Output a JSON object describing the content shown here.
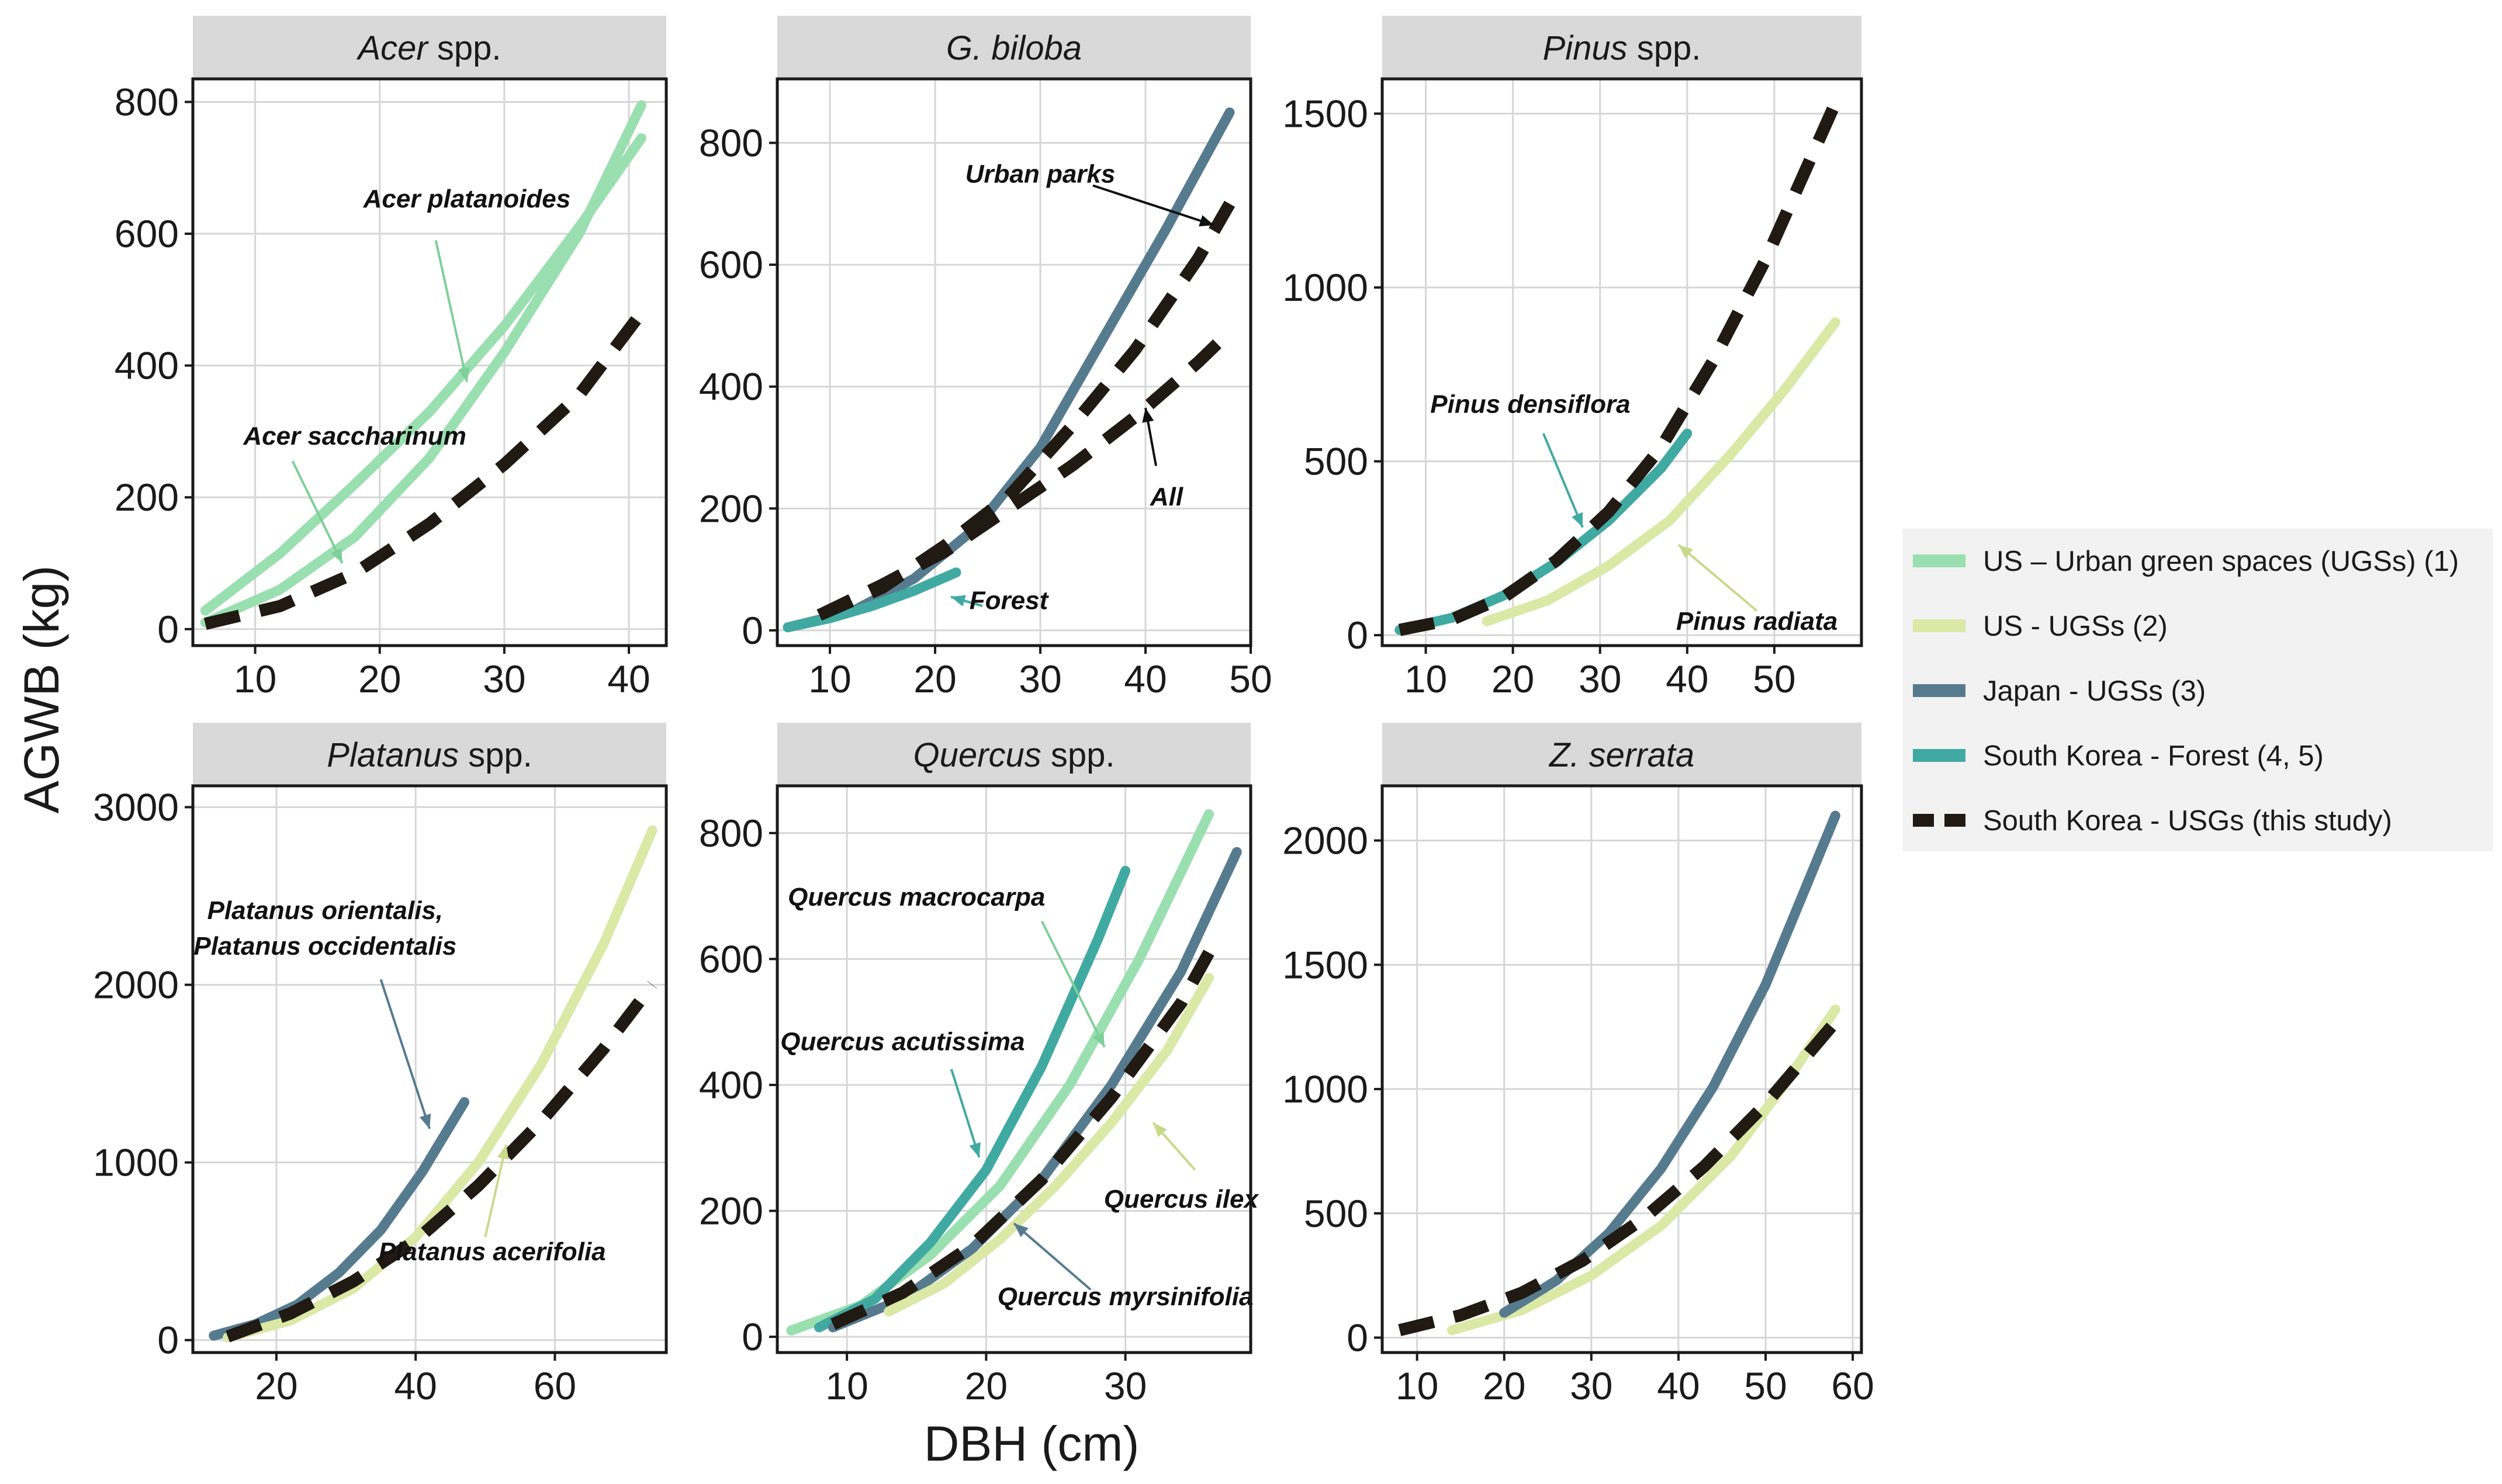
{
  "figure": {
    "y_axis_title": "AGWB (kg)",
    "x_axis_title": "DBH (cm)"
  },
  "colors": {
    "us_ugs1": "#99dfaf",
    "us_ugs2": "#dbe8a6",
    "japan": "#567b8f",
    "korea_forest": "#40aaa2",
    "korea_ugs": "#211a12",
    "strip_bg": "#d9d9d9",
    "grid": "#d6d6d6"
  },
  "legend": {
    "items": [
      {
        "series": "us_ugs1",
        "label": "US – Urban green spaces (UGSs) (1)",
        "dashed": false
      },
      {
        "series": "us_ugs2",
        "label": "US - UGSs (2)",
        "dashed": false
      },
      {
        "series": "japan",
        "label": "Japan - UGSs (3)",
        "dashed": false
      },
      {
        "series": "korea_forest",
        "label": "South Korea - Forest (4, 5)",
        "dashed": false
      },
      {
        "series": "korea_ugs",
        "label": "South Korea - USGs (this study)",
        "dashed": true
      }
    ]
  },
  "chart_data": [
    {
      "type": "line",
      "title_italic": "Acer",
      "title_rest": " spp.",
      "xlabel": "DBH (cm)",
      "ylabel": "AGWB (kg)",
      "xlim": [
        5,
        43
      ],
      "ylim": [
        -25,
        835
      ],
      "xticks": [
        10,
        20,
        30,
        40
      ],
      "yticks": [
        0,
        200,
        400,
        600,
        800
      ],
      "series": [
        {
          "name": "US – Urban green spaces (UGSs) (1)",
          "color_key": "us_ugs1",
          "dashed": false,
          "x": [
            6,
            12,
            18,
            24,
            30,
            36,
            41
          ],
          "y": [
            28,
            115,
            220,
            330,
            460,
            610,
            745
          ]
        },
        {
          "name": "US – Urban green spaces (UGSs) (1)",
          "color_key": "us_ugs1",
          "dashed": false,
          "x": [
            6,
            12,
            18,
            24,
            30,
            36,
            41
          ],
          "y": [
            10,
            60,
            140,
            260,
            420,
            600,
            795
          ]
        },
        {
          "name": "South Korea - USGs (this study)",
          "color_key": "korea_ugs",
          "dashed": true,
          "x": [
            6,
            12,
            18,
            24,
            30,
            36,
            41
          ],
          "y": [
            8,
            35,
            85,
            160,
            250,
            355,
            480
          ]
        }
      ],
      "annotations": [
        {
          "text": "Acer platanoides",
          "tx": 27,
          "ty": 640,
          "ax": 24.5,
          "ay": 590,
          "bx": 27,
          "by": 375
        },
        {
          "text": "Acer saccharinum",
          "tx": 18,
          "ty": 280,
          "ax": 13,
          "ay": 255,
          "bx": 17,
          "by": 100
        }
      ]
    },
    {
      "type": "line",
      "title_italic": "G. biloba",
      "title_rest": "",
      "xlabel": "DBH (cm)",
      "ylabel": "AGWB (kg)",
      "xlim": [
        5,
        50
      ],
      "ylim": [
        -25,
        905
      ],
      "xticks": [
        10,
        20,
        30,
        40,
        50
      ],
      "yticks": [
        0,
        200,
        400,
        600,
        800
      ],
      "series": [
        {
          "name": "Japan - UGSs (3)",
          "color_key": "japan",
          "dashed": false,
          "x": [
            6,
            12,
            18,
            24,
            30,
            36,
            42,
            48
          ],
          "y": [
            5,
            30,
            85,
            170,
            300,
            480,
            660,
            850
          ]
        },
        {
          "name": "South Korea - Forest (4, 5)",
          "color_key": "korea_forest",
          "dashed": false,
          "x": [
            6,
            10,
            14,
            18,
            22
          ],
          "y": [
            5,
            20,
            40,
            65,
            95
          ]
        },
        {
          "name": "South Korea - USGs (this study)",
          "color_key": "korea_ugs",
          "dashed": true,
          "x": [
            9,
            15,
            21,
            27,
            33,
            39,
            45,
            48
          ],
          "y": [
            25,
            70,
            140,
            220,
            335,
            460,
            610,
            700
          ]
        },
        {
          "name": "South Korea - USGs (this study)",
          "color_key": "korea_ugs",
          "dashed": true,
          "x": [
            9,
            15,
            21,
            27,
            33,
            39,
            45,
            48
          ],
          "y": [
            25,
            75,
            130,
            200,
            270,
            350,
            440,
            490
          ]
        }
      ],
      "annotations": [
        {
          "text": "Urban parks",
          "tx": 30,
          "ty": 735,
          "ax": 35,
          "ay": 730,
          "bx": 46.5,
          "by": 665
        },
        {
          "text": "All",
          "tx": 42,
          "ty": 205,
          "ax": 41,
          "ay": 270,
          "bx": 40,
          "by": 365
        },
        {
          "text": "Forest",
          "tx": 27,
          "ty": 35,
          "ax": 24.5,
          "ay": 40,
          "bx": 21.5,
          "by": 55
        }
      ]
    },
    {
      "type": "line",
      "title_italic": "Pinus",
      "title_rest": " spp.",
      "xlabel": "DBH (cm)",
      "ylabel": "AGWB (kg)",
      "xlim": [
        5,
        60
      ],
      "ylim": [
        -30,
        1600
      ],
      "xticks": [
        10,
        20,
        30,
        40,
        50
      ],
      "yticks": [
        0,
        500,
        1000,
        1500
      ],
      "series": [
        {
          "name": "US - UGSs (2)",
          "color_key": "us_ugs2",
          "dashed": false,
          "x": [
            17,
            24,
            31,
            38,
            45,
            51,
            57
          ],
          "y": [
            40,
            100,
            200,
            330,
            520,
            700,
            900
          ]
        },
        {
          "name": "South Korea - Forest (4, 5)",
          "color_key": "korea_forest",
          "dashed": false,
          "x": [
            7,
            13,
            19,
            25,
            31,
            37,
            40
          ],
          "y": [
            15,
            50,
            115,
            210,
            330,
            480,
            580
          ]
        },
        {
          "name": "South Korea - USGs (this study)",
          "color_key": "korea_ugs",
          "dashed": true,
          "x": [
            7,
            13,
            19,
            25,
            31,
            37,
            43,
            49,
            57
          ],
          "y": [
            15,
            45,
            110,
            215,
            355,
            540,
            790,
            1080,
            1530
          ]
        }
      ],
      "annotations": [
        {
          "text": "Pinus densiflora",
          "tx": 22,
          "ty": 640,
          "ax": 23.5,
          "ay": 580,
          "bx": 28,
          "by": 310
        },
        {
          "text": "Pinus radiata",
          "tx": 48,
          "ty": 15,
          "ax": 48,
          "ay": 70,
          "bx": 39,
          "by": 260
        }
      ]
    },
    {
      "type": "line",
      "title_italic": "Platanus",
      "title_rest": " spp.",
      "xlabel": "DBH (cm)",
      "ylabel": "AGWB (kg)",
      "xlim": [
        8,
        76
      ],
      "ylim": [
        -70,
        3120
      ],
      "xticks": [
        20,
        40,
        60
      ],
      "yticks": [
        0,
        1000,
        2000,
        3000
      ],
      "series": [
        {
          "name": "Japan - UGSs (3)",
          "color_key": "japan",
          "dashed": false,
          "x": [
            11,
            17,
            23,
            29,
            35,
            41,
            47
          ],
          "y": [
            25,
            90,
            200,
            380,
            620,
            950,
            1340
          ]
        },
        {
          "name": "US - UGSs (2)",
          "color_key": "us_ugs2",
          "dashed": false,
          "x": [
            13,
            22,
            31,
            40,
            49,
            58,
            67,
            74
          ],
          "y": [
            15,
            110,
            290,
            580,
            1000,
            1550,
            2230,
            2870
          ]
        },
        {
          "name": "South Korea - USGs (this study)",
          "color_key": "korea_ugs",
          "dashed": true,
          "x": [
            13,
            22,
            31,
            40,
            49,
            58,
            67,
            74
          ],
          "y": [
            20,
            150,
            330,
            560,
            870,
            1230,
            1640,
            2000
          ]
        }
      ],
      "annotations": [
        {
          "text": "Platanus orientalis,",
          "tx": 27,
          "ty": 2370,
          "ax": 0,
          "ay": 0,
          "bx": 0,
          "by": 0
        },
        {
          "text": "Platanus occidentalis",
          "tx": 27,
          "ty": 2170,
          "ax": 35,
          "ay": 2030,
          "bx": 42,
          "by": 1190
        },
        {
          "text": "Platanus acerifolia",
          "tx": 51,
          "ty": 450,
          "ax": 50,
          "ay": 580,
          "bx": 53,
          "by": 1100
        }
      ]
    },
    {
      "type": "line",
      "title_italic": "Quercus",
      "title_rest": " spp.",
      "xlabel": "DBH (cm)",
      "ylabel": "AGWB (kg)",
      "xlim": [
        5,
        39
      ],
      "ylim": [
        -25,
        875
      ],
      "xticks": [
        10,
        20,
        30
      ],
      "yticks": [
        0,
        200,
        400,
        600,
        800
      ],
      "series": [
        {
          "name": "US – Urban green spaces (UGSs) (1)",
          "color_key": "us_ugs1",
          "dashed": false,
          "x": [
            6,
            11,
            16,
            21,
            26,
            31,
            36
          ],
          "y": [
            10,
            50,
            130,
            240,
            400,
            600,
            830
          ]
        },
        {
          "name": "South Korea - Forest (4, 5)",
          "color_key": "korea_forest",
          "dashed": false,
          "x": [
            8,
            12,
            16,
            20,
            24,
            28,
            30
          ],
          "y": [
            15,
            60,
            150,
            265,
            430,
            630,
            740
          ]
        },
        {
          "name": "Japan - UGSs (3)",
          "color_key": "japan",
          "dashed": false,
          "x": [
            9,
            14,
            19,
            24,
            29,
            34,
            38
          ],
          "y": [
            15,
            60,
            140,
            250,
            400,
            580,
            770
          ]
        },
        {
          "name": "US - UGSs (2)",
          "color_key": "us_ugs2",
          "dashed": false,
          "x": [
            13,
            17,
            21,
            25,
            29,
            33,
            36
          ],
          "y": [
            40,
            85,
            155,
            240,
            340,
            455,
            570
          ]
        },
        {
          "name": "South Korea - USGs (this study)",
          "color_key": "korea_ugs",
          "dashed": true,
          "x": [
            9,
            14,
            19,
            24,
            29,
            34,
            36
          ],
          "y": [
            20,
            70,
            145,
            250,
            380,
            530,
            610
          ]
        }
      ],
      "annotations": [
        {
          "text": "Quercus macrocarpa",
          "tx": 15,
          "ty": 685,
          "ax": 24,
          "ay": 660,
          "bx": 28.5,
          "by": 460
        },
        {
          "text": "Quercus acutissima",
          "tx": 14,
          "ty": 455,
          "ax": 17.5,
          "ay": 425,
          "bx": 19.5,
          "by": 285
        },
        {
          "text": "Quercus ilex",
          "tx": 34,
          "ty": 205,
          "ax": 35,
          "ay": 265,
          "bx": 32,
          "by": 340
        },
        {
          "text": "Quercus myrsinifolia",
          "tx": 30,
          "ty": 50,
          "ax": 27.5,
          "ay": 75,
          "bx": 22,
          "by": 180
        }
      ]
    },
    {
      "type": "line",
      "title_italic": "Z. serrata",
      "title_rest": "",
      "xlabel": "DBH (cm)",
      "ylabel": "AGWB (kg)",
      "xlim": [
        6,
        61
      ],
      "ylim": [
        -60,
        2220
      ],
      "xticks": [
        10,
        20,
        30,
        40,
        50,
        60
      ],
      "yticks": [
        0,
        500,
        1000,
        1500,
        2000
      ],
      "series": [
        {
          "name": "US - UGSs (2)",
          "color_key": "us_ugs2",
          "dashed": false,
          "x": [
            14,
            22,
            30,
            38,
            46,
            52,
            58
          ],
          "y": [
            30,
            110,
            250,
            450,
            730,
            1010,
            1320
          ]
        },
        {
          "name": "Japan - UGSs (3)",
          "color_key": "japan",
          "dashed": false,
          "x": [
            20,
            26,
            32,
            38,
            44,
            50,
            58
          ],
          "y": [
            100,
            230,
            420,
            680,
            1010,
            1420,
            2100
          ]
        },
        {
          "name": "South Korea - USGs (this study)",
          "color_key": "korea_ugs",
          "dashed": true,
          "x": [
            8,
            15,
            22,
            29,
            36,
            43,
            50,
            58
          ],
          "y": [
            30,
            90,
            180,
            310,
            480,
            690,
            940,
            1270
          ]
        }
      ],
      "annotations": []
    }
  ]
}
